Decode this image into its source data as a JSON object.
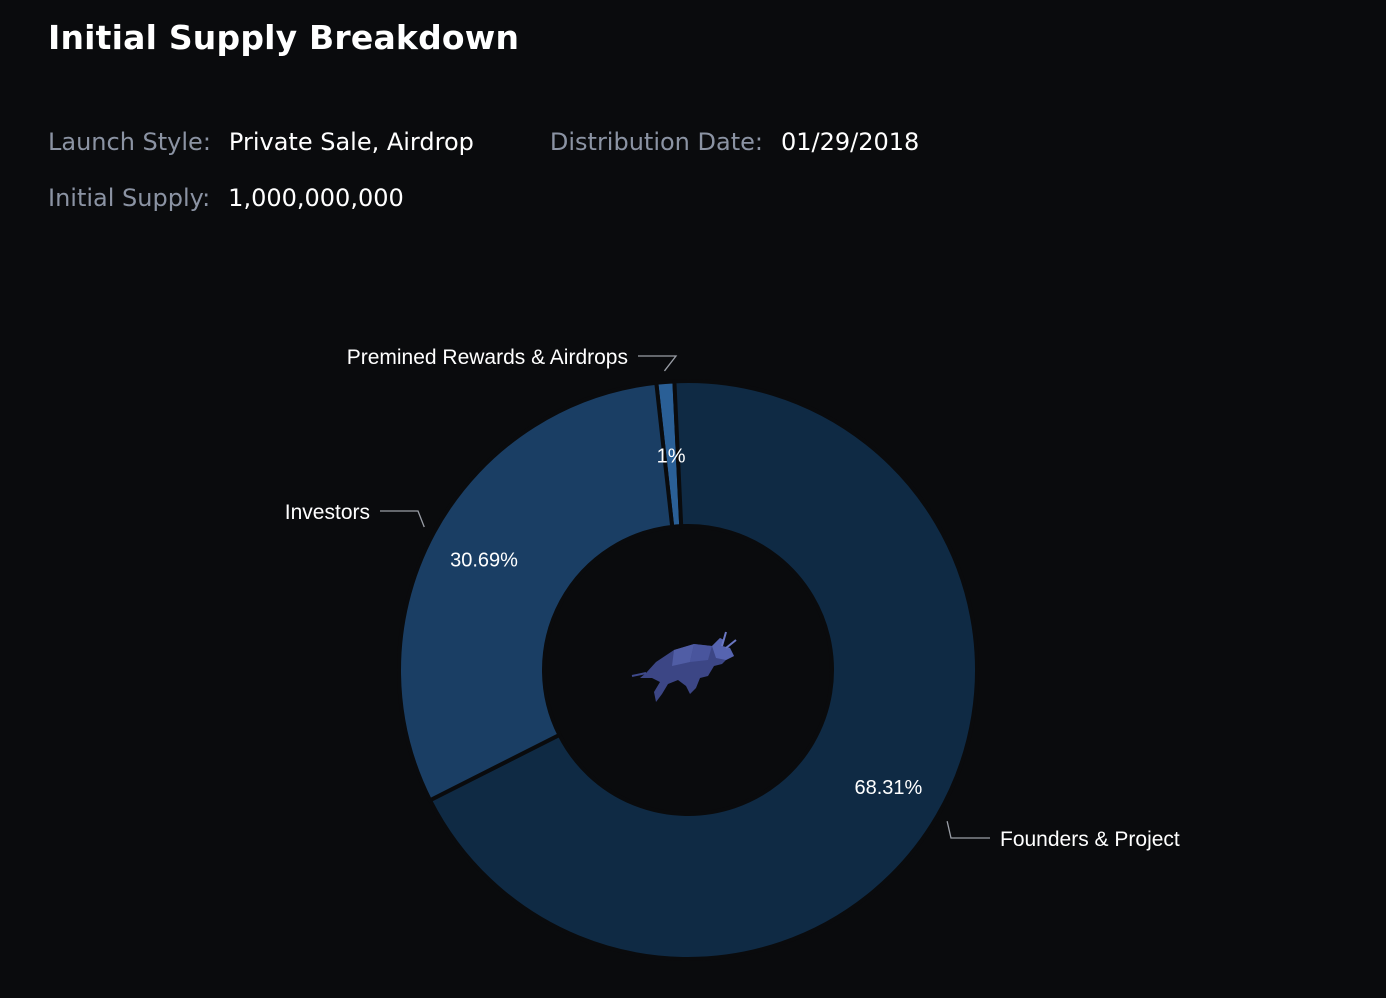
{
  "header": {
    "title": "Initial Supply Breakdown"
  },
  "meta": {
    "launch_style_label": "Launch Style:",
    "launch_style_value": "Private Sale, Airdrop",
    "distribution_date_label": "Distribution Date:",
    "distribution_date_value": "01/29/2018",
    "initial_supply_label": "Initial Supply:",
    "initial_supply_value": "1,000,000,000"
  },
  "icons": {
    "center_logo": "bull-icon"
  },
  "chart_data": {
    "type": "pie",
    "variant": "donut",
    "slices": [
      {
        "label": "Premined Rewards & Airdrops",
        "value": 1,
        "display": "1%",
        "color": "#2a5f96"
      },
      {
        "label": "Founders & Project",
        "value": 68.31,
        "display": "68.31%",
        "color": "#0f2a44"
      },
      {
        "label": "Investors",
        "value": 30.69,
        "display": "30.69%",
        "color": "#1a3e64"
      }
    ],
    "background": "#0a0b0d",
    "separator_color": "#0a0b0d",
    "leader_color": "#9a9ea6"
  }
}
